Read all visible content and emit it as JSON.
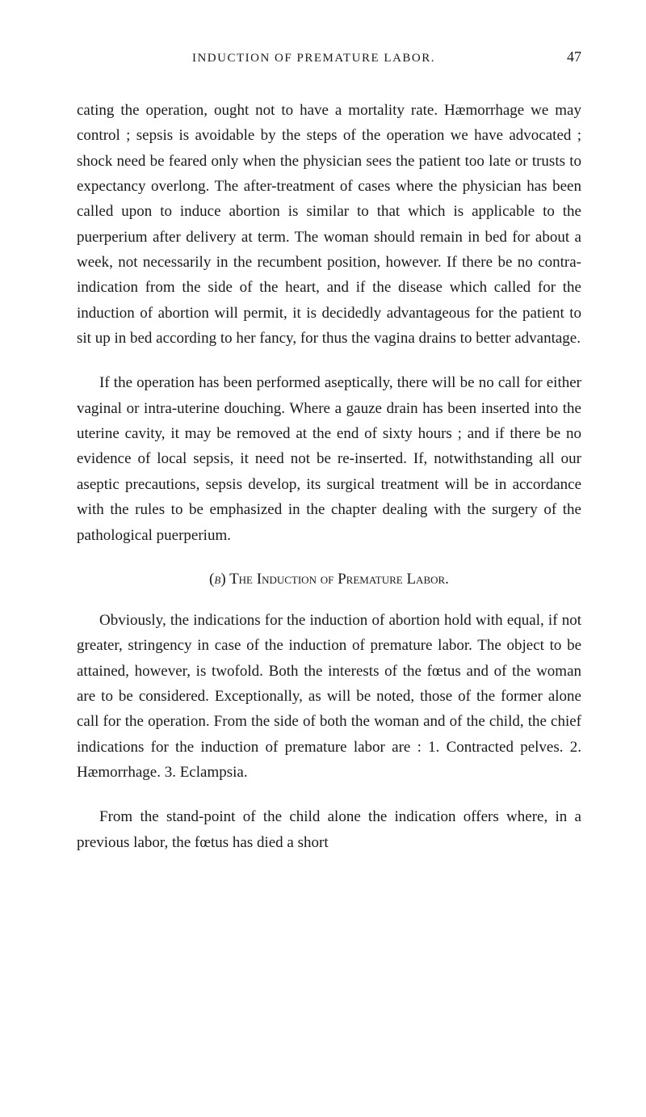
{
  "header": {
    "runningHead": "INDUCTION OF PREMATURE LABOR.",
    "pageNumber": "47"
  },
  "paragraphs": {
    "p1": "cating the operation, ought not to have a mortality rate. Hæmorrhage we may control ; sepsis is avoidable by the steps of the operation we have advocated ; shock need be feared only when the physician sees the patient too late or trusts to expectancy overlong. The after-treatment of cases where the physician has been called upon to induce abortion is similar to that which is applicable to the puerperium after delivery at term. The woman should remain in bed for about a week, not necessarily in the recumbent position, however. If there be no contra-indication from the side of the heart, and if the disease which called for the induction of abortion will permit, it is decidedly advantageous for the patient to sit up in bed according to her fancy, for thus the vagina drains to better advantage.",
    "p2": "If the operation has been performed aseptically, there will be no call for either vaginal or intra-uterine douching. Where a gauze drain has been inserted into the uterine cavity, it may be removed at the end of sixty hours ; and if there be no evidence of local sepsis, it need not be re-inserted. If, notwithstanding all our aseptic precautions, sepsis develop, its surgical treatment will be in accordance with the rules to be emphasized in the chapter dealing with the surgery of the pathological puerperium.",
    "p3": "Obviously, the indications for the induction of abortion hold with equal, if not greater, stringency in case of the induction of premature labor. The object to be attained, however, is twofold. Both the interests of the fœtus and of the woman are to be considered. Exceptionally, as will be noted, those of the former alone call for the operation. From the side of both the woman and of the child, the chief indications for the induction of premature labor are : 1. Contracted pelves. 2. Hæmorrhage. 3. Eclampsia.",
    "p4": "From the stand-point of the child alone the indication offers where, in a previous labor, the fœtus has died a short"
  },
  "sectionHeading": {
    "prefix": "(",
    "letter": "b",
    "suffix": ") ",
    "smallCapsPart": "The Induction of Premature Labor."
  }
}
